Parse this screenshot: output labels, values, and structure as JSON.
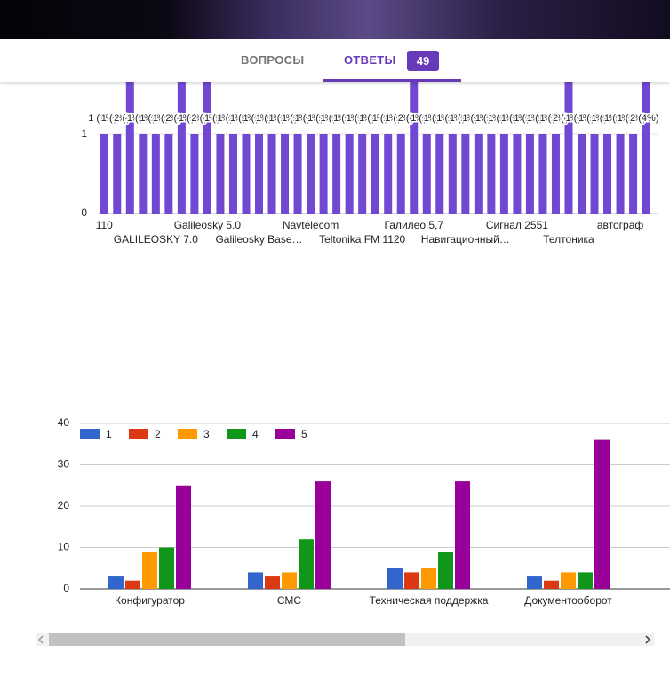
{
  "header": {
    "tabs": [
      "ВОПРОСЫ",
      "ОТВЕТЫ"
    ],
    "count": "49"
  },
  "chart_data": [
    {
      "type": "bar",
      "color": "#7048d1",
      "categories": [
        "110",
        null,
        null,
        null,
        "GALILEOSKY 7.0",
        null,
        null,
        null,
        "Galileosky 5.0",
        null,
        null,
        null,
        "Galileosky Base…",
        null,
        null,
        null,
        "Navtelecom",
        null,
        null,
        null,
        "Teltonika FM 1120",
        null,
        null,
        null,
        "Галилео 5,7",
        null,
        null,
        null,
        "Навигационный…",
        null,
        null,
        null,
        "Сигнал 2551",
        null,
        null,
        null,
        "Телтоника",
        null,
        null,
        null,
        "автограф",
        null,
        null
      ],
      "values": [
        1,
        1,
        2,
        1,
        1,
        1,
        2,
        1,
        2,
        1,
        1,
        1,
        1,
        1,
        1,
        1,
        1,
        1,
        1,
        1,
        1,
        1,
        1,
        1,
        2,
        1,
        1,
        1,
        1,
        1,
        1,
        1,
        1,
        1,
        1,
        1,
        2,
        1,
        1,
        1,
        1,
        1,
        2
      ],
      "value_labels": [
        "1 (2%)",
        "1 (2%)",
        "2 (4%)",
        "1 (2%)",
        "1 (2%)",
        "1 (2%)",
        "2 (4%)",
        "1 (2%)",
        "2 (4%)",
        "1 (2%)",
        "1 (2%)",
        "1 (2%)",
        "1 (2%)",
        "1 (2%)",
        "1 (2%)",
        "1 (2%)",
        "1 (2%)",
        "1 (2%)",
        "1 (2%)",
        "1 (2%)",
        "1 (2%)",
        "1 (2%)",
        "1 (2%)",
        "1 (2%)",
        "2 (4%)",
        "1 (2%)",
        "1 (2%)",
        "1 (2%)",
        "1 (2%)",
        "1 (2%)",
        "1 (2%)",
        "1 (2%)",
        "1 (2%)",
        "1 (2%)",
        "1 (2%)",
        "1 (2%)",
        "2 (4%)",
        "1 (2%)",
        "1 (2%)",
        "1 (2%)",
        "1 (2%)",
        "1 (2%)",
        "2 (4%)"
      ],
      "ylim": [
        0,
        2
      ],
      "yticks": [
        0,
        1
      ]
    },
    {
      "type": "grouped_bar",
      "categories": [
        "Конфигуратор",
        "СМС",
        "Техническая поддержка",
        "Документооборот"
      ],
      "series": [
        {
          "name": "1",
          "color": "#3366cc",
          "values": [
            3,
            4,
            5,
            3
          ]
        },
        {
          "name": "2",
          "color": "#dc3912",
          "values": [
            2,
            3,
            4,
            2
          ]
        },
        {
          "name": "3",
          "color": "#ff9900",
          "values": [
            9,
            4,
            5,
            4
          ]
        },
        {
          "name": "4",
          "color": "#109618",
          "values": [
            10,
            12,
            9,
            4
          ]
        },
        {
          "name": "5",
          "color": "#990099",
          "values": [
            25,
            26,
            26,
            36
          ]
        }
      ],
      "ylim": [
        0,
        40
      ],
      "yticks": [
        0,
        10,
        20,
        30,
        40
      ],
      "grid": true,
      "legend": "top"
    }
  ]
}
